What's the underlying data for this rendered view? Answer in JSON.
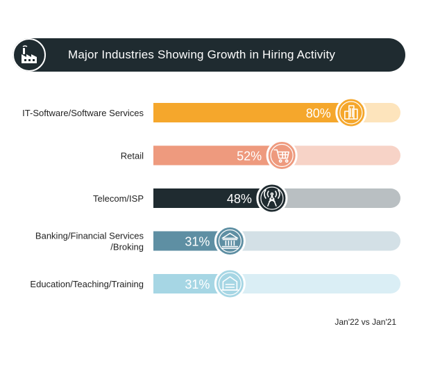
{
  "header": {
    "title": "Major Industries Showing Growth in Hiring Activity",
    "icon": "factory-icon"
  },
  "chart_data": {
    "type": "bar",
    "orientation": "horizontal",
    "categories": [
      [
        "IT-Software/Software Services"
      ],
      [
        "Retail"
      ],
      [
        "Telecom/ISP"
      ],
      [
        "Banking/Financial Services",
        "/Broking"
      ],
      [
        "Education/Teaching/Training"
      ]
    ],
    "values": [
      80,
      52,
      48,
      31,
      31
    ],
    "value_labels": [
      "80%",
      "52%",
      "48%",
      "31%",
      "31%"
    ],
    "xlim": [
      0,
      100
    ],
    "colors": [
      "#f5a72c",
      "#ee9a7e",
      "#1f2b30",
      "#5e8fa3",
      "#a6d6e4"
    ],
    "track_colors": [
      "#fde4bc",
      "#f7d3c7",
      "#b9bfc2",
      "#d3e0e6",
      "#daeef5"
    ],
    "icons": [
      "buildings-icon",
      "shopping-cart-icon",
      "signal-tower-icon",
      "bank-icon",
      "school-icon"
    ]
  },
  "footnote": "Jan'22 vs Jan'21"
}
